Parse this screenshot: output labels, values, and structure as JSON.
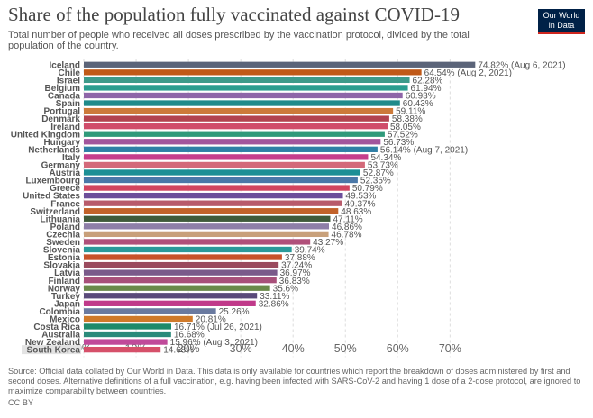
{
  "header": {
    "title": "Share of the population fully vaccinated against COVID-19",
    "subtitle": "Total number of people who received all doses prescribed by the vaccination protocol, divided by the total population of the country."
  },
  "logo": {
    "line1": "Our World",
    "line2": "in Data"
  },
  "footer": {
    "source": "Source: Official data collated by Our World in Data. This data is only available for countries which report the breakdown of doses administered by first and second doses. Alternative definitions of a full vaccination, e.g. having been infected with SARS-CoV-2 and having 1 dose of a 2-dose protocol, are ignored to maximize comparability between countries.",
    "license": "CC BY"
  },
  "chart_data": {
    "type": "bar",
    "orientation": "horizontal",
    "xlim": [
      0,
      75
    ],
    "xticks": [
      0,
      10,
      20,
      30,
      40,
      50,
      60,
      70
    ],
    "xtick_labels": [
      "0%",
      "10%",
      "20%",
      "30%",
      "40%",
      "50%",
      "60%",
      "70%"
    ],
    "grid": true,
    "highlighted": "South Korea",
    "bars": [
      {
        "country": "Iceland",
        "value": 74.82,
        "label": "74.82% (Aug 6, 2021)",
        "color": "#5b6479"
      },
      {
        "country": "Chile",
        "value": 64.54,
        "label": "64.54% (Aug 2, 2021)",
        "color": "#c05917"
      },
      {
        "country": "Israel",
        "value": 62.28,
        "label": "62.28%",
        "color": "#3d9a8a"
      },
      {
        "country": "Belgium",
        "value": 61.94,
        "label": "61.94%",
        "color": "#2a9d8f"
      },
      {
        "country": "Canada",
        "value": 60.93,
        "label": "60.93%",
        "color": "#8e65a8"
      },
      {
        "country": "Spain",
        "value": 60.43,
        "label": "60.43%",
        "color": "#1f8a8a"
      },
      {
        "country": "Portugal",
        "value": 59.11,
        "label": "59.11%",
        "color": "#cc7a3a"
      },
      {
        "country": "Denmark",
        "value": 58.38,
        "label": "58.38%",
        "color": "#b2434f"
      },
      {
        "country": "Ireland",
        "value": 58.05,
        "label": "58.05%",
        "color": "#d04c6a"
      },
      {
        "country": "United Kingdom",
        "value": 57.52,
        "label": "57.52%",
        "color": "#2f9a7a"
      },
      {
        "country": "Hungary",
        "value": 56.73,
        "label": "56.73%",
        "color": "#a2559c"
      },
      {
        "country": "Netherlands",
        "value": 56.14,
        "label": "56.14% (Aug 7, 2021)",
        "color": "#2f7fa6"
      },
      {
        "country": "Italy",
        "value": 54.34,
        "label": "54.34%",
        "color": "#c63d8c"
      },
      {
        "country": "Germany",
        "value": 53.73,
        "label": "53.73%",
        "color": "#d36a7a"
      },
      {
        "country": "Austria",
        "value": 52.87,
        "label": "52.87%",
        "color": "#1c8f95"
      },
      {
        "country": "Luxembourg",
        "value": 52.35,
        "label": "52.35%",
        "color": "#4a78a8"
      },
      {
        "country": "Greece",
        "value": 50.79,
        "label": "50.79%",
        "color": "#d2455f"
      },
      {
        "country": "United States",
        "value": 49.53,
        "label": "49.53%",
        "color": "#6c4e9a"
      },
      {
        "country": "France",
        "value": 49.37,
        "label": "49.37%",
        "color": "#b85b6b"
      },
      {
        "country": "Switzerland",
        "value": 48.63,
        "label": "48.63%",
        "color": "#c2622a"
      },
      {
        "country": "Lithuania",
        "value": 47.11,
        "label": "47.11%",
        "color": "#3f5a3a"
      },
      {
        "country": "Poland",
        "value": 46.86,
        "label": "46.86%",
        "color": "#8e7fa8"
      },
      {
        "country": "Czechia",
        "value": 46.78,
        "label": "46.78%",
        "color": "#c8a07a"
      },
      {
        "country": "Sweden",
        "value": 43.27,
        "label": "43.27%",
        "color": "#b0507a"
      },
      {
        "country": "Slovenia",
        "value": 39.74,
        "label": "39.74%",
        "color": "#2a9a9a"
      },
      {
        "country": "Estonia",
        "value": 37.88,
        "label": "37.88%",
        "color": "#c7522a"
      },
      {
        "country": "Slovakia",
        "value": 37.24,
        "label": "37.24%",
        "color": "#9a4a5e"
      },
      {
        "country": "Latvia",
        "value": 36.97,
        "label": "36.97%",
        "color": "#7a5a8a"
      },
      {
        "country": "Finland",
        "value": 36.83,
        "label": "36.83%",
        "color": "#a8507a"
      },
      {
        "country": "Norway",
        "value": 35.6,
        "label": "35.6%",
        "color": "#6a8a4a"
      },
      {
        "country": "Turkey",
        "value": 33.11,
        "label": "33.11%",
        "color": "#5a4a7a"
      },
      {
        "country": "Japan",
        "value": 32.86,
        "label": "32.86%",
        "color": "#c03a8a"
      },
      {
        "country": "Colombia",
        "value": 25.26,
        "label": "25.26%",
        "color": "#6a7aa0"
      },
      {
        "country": "Mexico",
        "value": 20.81,
        "label": "20.81%",
        "color": "#d07a2a"
      },
      {
        "country": "Costa Rica",
        "value": 16.71,
        "label": "16.71% (Jul 26, 2021)",
        "color": "#1e8a6a"
      },
      {
        "country": "Australia",
        "value": 16.68,
        "label": "16.68%",
        "color": "#2a8a7a"
      },
      {
        "country": "New Zealand",
        "value": 15.96,
        "label": "15.96% (Aug 3, 2021)",
        "color": "#c04a9a"
      },
      {
        "country": "South Korea",
        "value": 14.68,
        "label": "14.68%",
        "color": "#d6506a"
      }
    ]
  }
}
